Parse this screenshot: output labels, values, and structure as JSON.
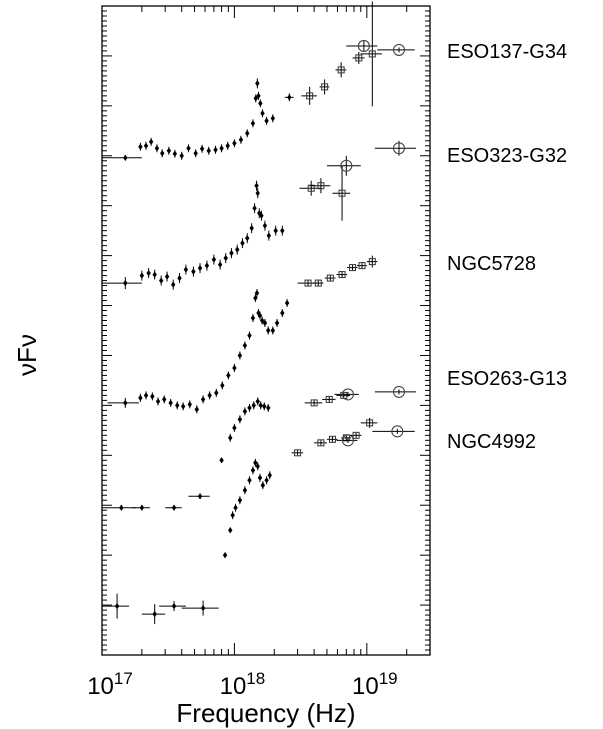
{
  "chart_data": {
    "type": "scatter",
    "title": "",
    "xlabel": "Frequency (Hz)",
    "ylabel": "νFν",
    "xscale": "log",
    "xlim": [
      1e+17,
      3e+19
    ],
    "ylim": [
      0,
      13
    ],
    "x_ticks": [
      {
        "value": 1e+17,
        "mantissa": "10",
        "exponent": "17"
      },
      {
        "value": 1e+18,
        "mantissa": "10",
        "exponent": "18"
      },
      {
        "value": 1e+19,
        "mantissa": "10",
        "exponent": "19"
      }
    ],
    "y_tick_labels_shown": false,
    "grid": false,
    "legend": "none (series labelled at right)",
    "series": [
      {
        "name": "ESO137-G34",
        "points": [
          {
            "x": 1.5e+17,
            "y": 9.96,
            "xerr": 5e+16,
            "yerr": 0.05
          },
          {
            "x": 1.95e+17,
            "y": 10.18,
            "yerr": 0.08
          },
          {
            "x": 2.15e+17,
            "y": 10.2,
            "yerr": 0.08
          },
          {
            "x": 2.35e+17,
            "y": 10.28,
            "yerr": 0.08
          },
          {
            "x": 2.6e+17,
            "y": 10.15,
            "yerr": 0.08
          },
          {
            "x": 2.85e+17,
            "y": 10.05,
            "yerr": 0.08
          },
          {
            "x": 3.2e+17,
            "y": 10.1,
            "yerr": 0.08
          },
          {
            "x": 3.55e+17,
            "y": 10.04,
            "yerr": 0.08
          },
          {
            "x": 4e+17,
            "y": 10.0,
            "yerr": 0.08
          },
          {
            "x": 4.5e+17,
            "y": 10.15,
            "yerr": 0.08
          },
          {
            "x": 5.1e+17,
            "y": 10.05,
            "yerr": 0.08
          },
          {
            "x": 5.7e+17,
            "y": 10.14,
            "yerr": 0.08
          },
          {
            "x": 6.4e+17,
            "y": 10.1,
            "yerr": 0.08
          },
          {
            "x": 7.2e+17,
            "y": 10.12,
            "yerr": 0.08
          },
          {
            "x": 8e+17,
            "y": 10.15,
            "yerr": 0.08
          },
          {
            "x": 8.9e+17,
            "y": 10.2,
            "yerr": 0.08
          },
          {
            "x": 1e+18,
            "y": 10.25,
            "yerr": 0.08
          },
          {
            "x": 1.12e+18,
            "y": 10.32,
            "yerr": 0.08
          },
          {
            "x": 1.25e+18,
            "y": 10.45,
            "yerr": 0.08
          },
          {
            "x": 1.38e+18,
            "y": 10.65,
            "yerr": 0.08
          },
          {
            "x": 1.45e+18,
            "y": 11.15,
            "yerr": 0.08
          },
          {
            "x": 1.49e+18,
            "y": 11.45,
            "yerr": 0.1
          },
          {
            "x": 1.52e+18,
            "y": 11.2,
            "yerr": 0.08
          },
          {
            "x": 1.57e+18,
            "y": 11.05,
            "yerr": 0.08
          },
          {
            "x": 1.63e+18,
            "y": 10.85,
            "yerr": 0.08
          },
          {
            "x": 1.75e+18,
            "y": 10.7,
            "yerr": 0.08
          },
          {
            "x": 1.95e+18,
            "y": 10.75,
            "yerr": 0.08
          },
          {
            "x": 2.6e+18,
            "y": 11.17,
            "xerr": 2e+17,
            "yerr": 0.08
          },
          {
            "x": 3.7e+18,
            "y": 11.2,
            "xerr": 5e+17,
            "yerr": 0.18,
            "marker": "open-square"
          },
          {
            "x": 4.8e+18,
            "y": 11.38,
            "xerr": 4e+17,
            "yerr": 0.15,
            "marker": "open-square"
          },
          {
            "x": 6.4e+18,
            "y": 11.72,
            "xerr": 6e+17,
            "yerr": 0.15,
            "marker": "open-square"
          },
          {
            "x": 8.7e+18,
            "y": 11.96,
            "xerr": 9e+17,
            "yerr": 0.12,
            "marker": "open-square"
          },
          {
            "x": 9.5e+18,
            "y": 12.2,
            "xerr": 2.5e+18,
            "yerr": 0.1,
            "marker": "open-circle"
          },
          {
            "x": 1.1e+19,
            "y": 12.04,
            "xerr": 2e+18,
            "yerr": 1.05,
            "marker": "open-square"
          },
          {
            "x": 1.75e+19,
            "y": 12.12,
            "xerr": 5.5e+18,
            "yerr": 0.05,
            "marker": "open-circle"
          }
        ]
      },
      {
        "name": "ESO323-G32",
        "points": [
          {
            "x": 3.8e+18,
            "y": 9.35,
            "xerr": 7e+17,
            "yerr": 0.15,
            "marker": "open-square"
          },
          {
            "x": 4.5e+18,
            "y": 9.4,
            "xerr": 8e+17,
            "yerr": 0.15,
            "marker": "open-square"
          },
          {
            "x": 6.5e+18,
            "y": 9.25,
            "xerr": 1e+18,
            "yerr": 0.55,
            "marker": "open-square"
          },
          {
            "x": 7e+18,
            "y": 9.8,
            "xerr": 2e+18,
            "yerr": 0.2,
            "marker": "open-circle"
          },
          {
            "x": 1.75e+19,
            "y": 10.15,
            "xerr": 6e+18,
            "yerr": 0.15,
            "marker": "open-circle"
          }
        ]
      },
      {
        "name": "NGC5728",
        "points": [
          {
            "x": 1.5e+17,
            "y": 7.45,
            "xerr": 5e+16,
            "yerr": 0.12
          },
          {
            "x": 2e+17,
            "y": 7.6,
            "yerr": 0.1
          },
          {
            "x": 2.25e+17,
            "y": 7.65,
            "yerr": 0.1
          },
          {
            "x": 2.5e+17,
            "y": 7.62,
            "yerr": 0.1
          },
          {
            "x": 2.8e+17,
            "y": 7.5,
            "yerr": 0.1
          },
          {
            "x": 3.1e+17,
            "y": 7.58,
            "yerr": 0.1
          },
          {
            "x": 3.45e+17,
            "y": 7.42,
            "yerr": 0.1
          },
          {
            "x": 3.85e+17,
            "y": 7.55,
            "yerr": 0.1
          },
          {
            "x": 4.3e+17,
            "y": 7.72,
            "yerr": 0.1
          },
          {
            "x": 4.9e+17,
            "y": 7.68,
            "yerr": 0.1
          },
          {
            "x": 5.5e+17,
            "y": 7.75,
            "yerr": 0.1
          },
          {
            "x": 6.2e+17,
            "y": 7.8,
            "yerr": 0.1
          },
          {
            "x": 7e+17,
            "y": 7.92,
            "yerr": 0.1
          },
          {
            "x": 7.8e+17,
            "y": 7.82,
            "yerr": 0.1
          },
          {
            "x": 8.6e+17,
            "y": 7.95,
            "yerr": 0.1
          },
          {
            "x": 9.5e+17,
            "y": 8.05,
            "yerr": 0.1
          },
          {
            "x": 1.05e+18,
            "y": 8.12,
            "yerr": 0.1
          },
          {
            "x": 1.15e+18,
            "y": 8.25,
            "yerr": 0.1
          },
          {
            "x": 1.25e+18,
            "y": 8.35,
            "yerr": 0.1
          },
          {
            "x": 1.35e+18,
            "y": 8.55,
            "yerr": 0.1
          },
          {
            "x": 1.42e+18,
            "y": 8.95,
            "yerr": 0.1
          },
          {
            "x": 1.47e+18,
            "y": 9.4,
            "yerr": 0.1
          },
          {
            "x": 1.5e+18,
            "y": 9.25,
            "yerr": 0.1
          },
          {
            "x": 1.54e+18,
            "y": 8.85,
            "yerr": 0.1
          },
          {
            "x": 1.6e+18,
            "y": 8.8,
            "yerr": 0.1
          },
          {
            "x": 1.7e+18,
            "y": 8.6,
            "yerr": 0.1
          },
          {
            "x": 1.82e+18,
            "y": 8.4,
            "yerr": 0.1
          },
          {
            "x": 2.05e+18,
            "y": 8.5,
            "yerr": 0.1
          },
          {
            "x": 2.3e+18,
            "y": 8.5,
            "yerr": 0.1
          },
          {
            "x": 3.6e+18,
            "y": 7.45,
            "xerr": 6e+17,
            "yerr": 0.05,
            "marker": "open-square"
          },
          {
            "x": 4.3e+18,
            "y": 7.45,
            "xerr": 4e+17,
            "yerr": 0.05,
            "marker": "open-square"
          },
          {
            "x": 5.3e+18,
            "y": 7.55,
            "xerr": 5e+17,
            "yerr": 0.05,
            "marker": "open-square"
          },
          {
            "x": 6.5e+18,
            "y": 7.62,
            "xerr": 6e+17,
            "yerr": 0.05,
            "marker": "open-square"
          },
          {
            "x": 7.8e+18,
            "y": 7.76,
            "xerr": 7e+17,
            "yerr": 0.05,
            "marker": "open-square"
          },
          {
            "x": 9.2e+18,
            "y": 7.8,
            "xerr": 8e+17,
            "yerr": 0.05,
            "marker": "open-square"
          },
          {
            "x": 1.1e+19,
            "y": 7.88,
            "xerr": 1e+18,
            "yerr": 0.12,
            "marker": "open-square"
          }
        ]
      },
      {
        "name": "ESO263-G13",
        "points": [
          {
            "x": 1.5e+17,
            "y": 5.05,
            "xerr": 4e+16,
            "yerr": 0.1
          },
          {
            "x": 1.95e+17,
            "y": 5.15,
            "yerr": 0.08
          },
          {
            "x": 2.15e+17,
            "y": 5.2,
            "yerr": 0.08
          },
          {
            "x": 2.4e+17,
            "y": 5.18,
            "yerr": 0.08
          },
          {
            "x": 2.65e+17,
            "y": 5.08,
            "yerr": 0.08
          },
          {
            "x": 2.95e+17,
            "y": 5.12,
            "yerr": 0.08
          },
          {
            "x": 3.3e+17,
            "y": 5.05,
            "yerr": 0.08
          },
          {
            "x": 3.7e+17,
            "y": 5.0,
            "yerr": 0.08
          },
          {
            "x": 4.1e+17,
            "y": 4.98,
            "yerr": 0.08
          },
          {
            "x": 4.6e+17,
            "y": 5.02,
            "yerr": 0.08
          },
          {
            "x": 5.2e+17,
            "y": 4.92,
            "yerr": 0.08
          },
          {
            "x": 5.8e+17,
            "y": 5.12,
            "yerr": 0.08
          },
          {
            "x": 6.5e+17,
            "y": 5.2,
            "yerr": 0.08
          },
          {
            "x": 7.3e+17,
            "y": 5.25,
            "yerr": 0.08
          },
          {
            "x": 8.1e+17,
            "y": 5.4,
            "yerr": 0.08
          },
          {
            "x": 9e+17,
            "y": 5.6,
            "yerr": 0.08
          },
          {
            "x": 1e+18,
            "y": 5.75,
            "yerr": 0.08
          },
          {
            "x": 1.1e+18,
            "y": 6.0,
            "yerr": 0.08
          },
          {
            "x": 1.2e+18,
            "y": 6.2,
            "yerr": 0.08
          },
          {
            "x": 1.3e+18,
            "y": 6.4,
            "yerr": 0.08
          },
          {
            "x": 1.38e+18,
            "y": 6.75,
            "yerr": 0.08
          },
          {
            "x": 1.44e+18,
            "y": 7.15,
            "yerr": 0.08
          },
          {
            "x": 1.48e+18,
            "y": 7.25,
            "yerr": 0.08
          },
          {
            "x": 1.52e+18,
            "y": 6.85,
            "yerr": 0.08
          },
          {
            "x": 1.56e+18,
            "y": 6.8,
            "yerr": 0.08
          },
          {
            "x": 1.62e+18,
            "y": 6.7,
            "yerr": 0.08
          },
          {
            "x": 1.7e+18,
            "y": 6.65,
            "yerr": 0.08
          },
          {
            "x": 1.8e+18,
            "y": 6.5,
            "yerr": 0.08
          },
          {
            "x": 1.95e+18,
            "y": 6.5,
            "yerr": 0.08
          },
          {
            "x": 2.1e+18,
            "y": 6.65,
            "yerr": 0.08
          },
          {
            "x": 2.3e+18,
            "y": 6.85,
            "yerr": 0.08
          },
          {
            "x": 2.5e+18,
            "y": 7.05,
            "yerr": 0.08
          },
          {
            "x": 4e+18,
            "y": 5.05,
            "xerr": 6e+17,
            "yerr": 0.05,
            "marker": "open-square"
          },
          {
            "x": 5.2e+18,
            "y": 5.12,
            "xerr": 6e+17,
            "yerr": 0.05,
            "marker": "open-square"
          },
          {
            "x": 6.7e+18,
            "y": 5.2,
            "xerr": 8e+17,
            "yerr": 0.05,
            "marker": "open-square"
          },
          {
            "x": 7.2e+18,
            "y": 5.22,
            "xerr": 1.5e+18,
            "yerr": 0.05,
            "marker": "open-circle"
          },
          {
            "x": 1.75e+19,
            "y": 5.27,
            "xerr": 6e+18,
            "yerr": 0.05,
            "marker": "open-circle"
          }
        ]
      },
      {
        "name": "NGC4992",
        "points": [
          {
            "x": 1.4e+17,
            "y": 2.95,
            "xerr": 4e+16,
            "yerr": 0.05
          },
          {
            "x": 2e+17,
            "y": 2.95,
            "xerr": 3e+16,
            "yerr": 0.05
          },
          {
            "x": 3.5e+17,
            "y": 2.95,
            "xerr": 5e+16,
            "yerr": 0.05
          },
          {
            "x": 5.5e+17,
            "y": 3.18,
            "xerr": 1e+17,
            "yerr": 0.05
          },
          {
            "x": 8e+17,
            "y": 3.9,
            "yerr": 0.05
          },
          {
            "x": 9.3e+17,
            "y": 4.35,
            "yerr": 0.08
          },
          {
            "x": 1e+18,
            "y": 4.55,
            "yerr": 0.08
          },
          {
            "x": 1.1e+18,
            "y": 4.72,
            "yerr": 0.08
          },
          {
            "x": 1.2e+18,
            "y": 4.88,
            "yerr": 0.08
          },
          {
            "x": 1.3e+18,
            "y": 4.95,
            "yerr": 0.08
          },
          {
            "x": 1.4e+18,
            "y": 5.0,
            "yerr": 0.08
          },
          {
            "x": 1.5e+18,
            "y": 5.08,
            "yerr": 0.08
          },
          {
            "x": 1.58e+18,
            "y": 5.0,
            "yerr": 0.08
          },
          {
            "x": 1.68e+18,
            "y": 4.98,
            "yerr": 0.08
          },
          {
            "x": 1.8e+18,
            "y": 4.95,
            "yerr": 0.08
          },
          {
            "x": 3e+18,
            "y": 4.05,
            "xerr": 3e+17,
            "yerr": 0.05,
            "marker": "open-square"
          },
          {
            "x": 4.5e+18,
            "y": 4.25,
            "xerr": 5e+17,
            "yerr": 0.05,
            "marker": "open-square"
          },
          {
            "x": 5.5e+18,
            "y": 4.32,
            "xerr": 5e+17,
            "yerr": 0.05,
            "marker": "open-square"
          },
          {
            "x": 7e+18,
            "y": 4.35,
            "xerr": 6e+17,
            "yerr": 0.05,
            "marker": "open-square"
          },
          {
            "x": 7.2e+18,
            "y": 4.3,
            "xerr": 1.3e+18,
            "yerr": 0.05,
            "marker": "open-circle"
          },
          {
            "x": 8.3e+18,
            "y": 4.4,
            "xerr": 8e+17,
            "yerr": 0.05,
            "marker": "open-square"
          },
          {
            "x": 1.05e+19,
            "y": 4.65,
            "xerr": 1.5e+18,
            "yerr": 0.1,
            "marker": "open-square"
          },
          {
            "x": 1.7e+19,
            "y": 4.48,
            "xerr": 6e+18,
            "yerr": 0.05,
            "marker": "open-circle"
          }
        ]
      },
      {
        "name": "",
        "points": [
          {
            "x": 8.5e+17,
            "y": 2.0,
            "yerr": 0.05
          },
          {
            "x": 9.3e+17,
            "y": 2.5,
            "yerr": 0.05
          },
          {
            "x": 9.7e+17,
            "y": 2.8,
            "yerr": 0.08
          },
          {
            "x": 1.02e+18,
            "y": 2.95,
            "yerr": 0.08
          },
          {
            "x": 1.1e+18,
            "y": 3.1,
            "yerr": 0.08
          },
          {
            "x": 1.2e+18,
            "y": 3.3,
            "yerr": 0.08
          },
          {
            "x": 1.3e+18,
            "y": 3.5,
            "yerr": 0.08
          },
          {
            "x": 1.38e+18,
            "y": 3.7,
            "yerr": 0.08
          },
          {
            "x": 1.44e+18,
            "y": 3.85,
            "yerr": 0.08
          },
          {
            "x": 1.5e+18,
            "y": 3.78,
            "yerr": 0.08
          },
          {
            "x": 1.56e+18,
            "y": 3.55,
            "yerr": 0.08
          },
          {
            "x": 1.64e+18,
            "y": 3.4,
            "yerr": 0.08
          },
          {
            "x": 1.75e+18,
            "y": 3.5,
            "yerr": 0.08
          },
          {
            "x": 1.85e+18,
            "y": 3.6,
            "yerr": 0.08
          },
          {
            "x": 1.3e+17,
            "y": 0.98,
            "xerr": 3e+16,
            "yerr": 0.25
          },
          {
            "x": 2.5e+17,
            "y": 0.82,
            "xerr": 5e+16,
            "yerr": 0.2
          },
          {
            "x": 3.5e+17,
            "y": 0.98,
            "xerr": 8e+16,
            "yerr": 0.1
          },
          {
            "x": 5.8e+17,
            "y": 0.94,
            "xerr": 1.8e+17,
            "yerr": 0.15
          }
        ]
      }
    ]
  },
  "series_labels": [
    {
      "text": "ESO137-G34"
    },
    {
      "text": "ESO323-G32"
    },
    {
      "text": "NGC5728"
    },
    {
      "text": "ESO263-G13"
    },
    {
      "text": "NGC4992"
    }
  ]
}
